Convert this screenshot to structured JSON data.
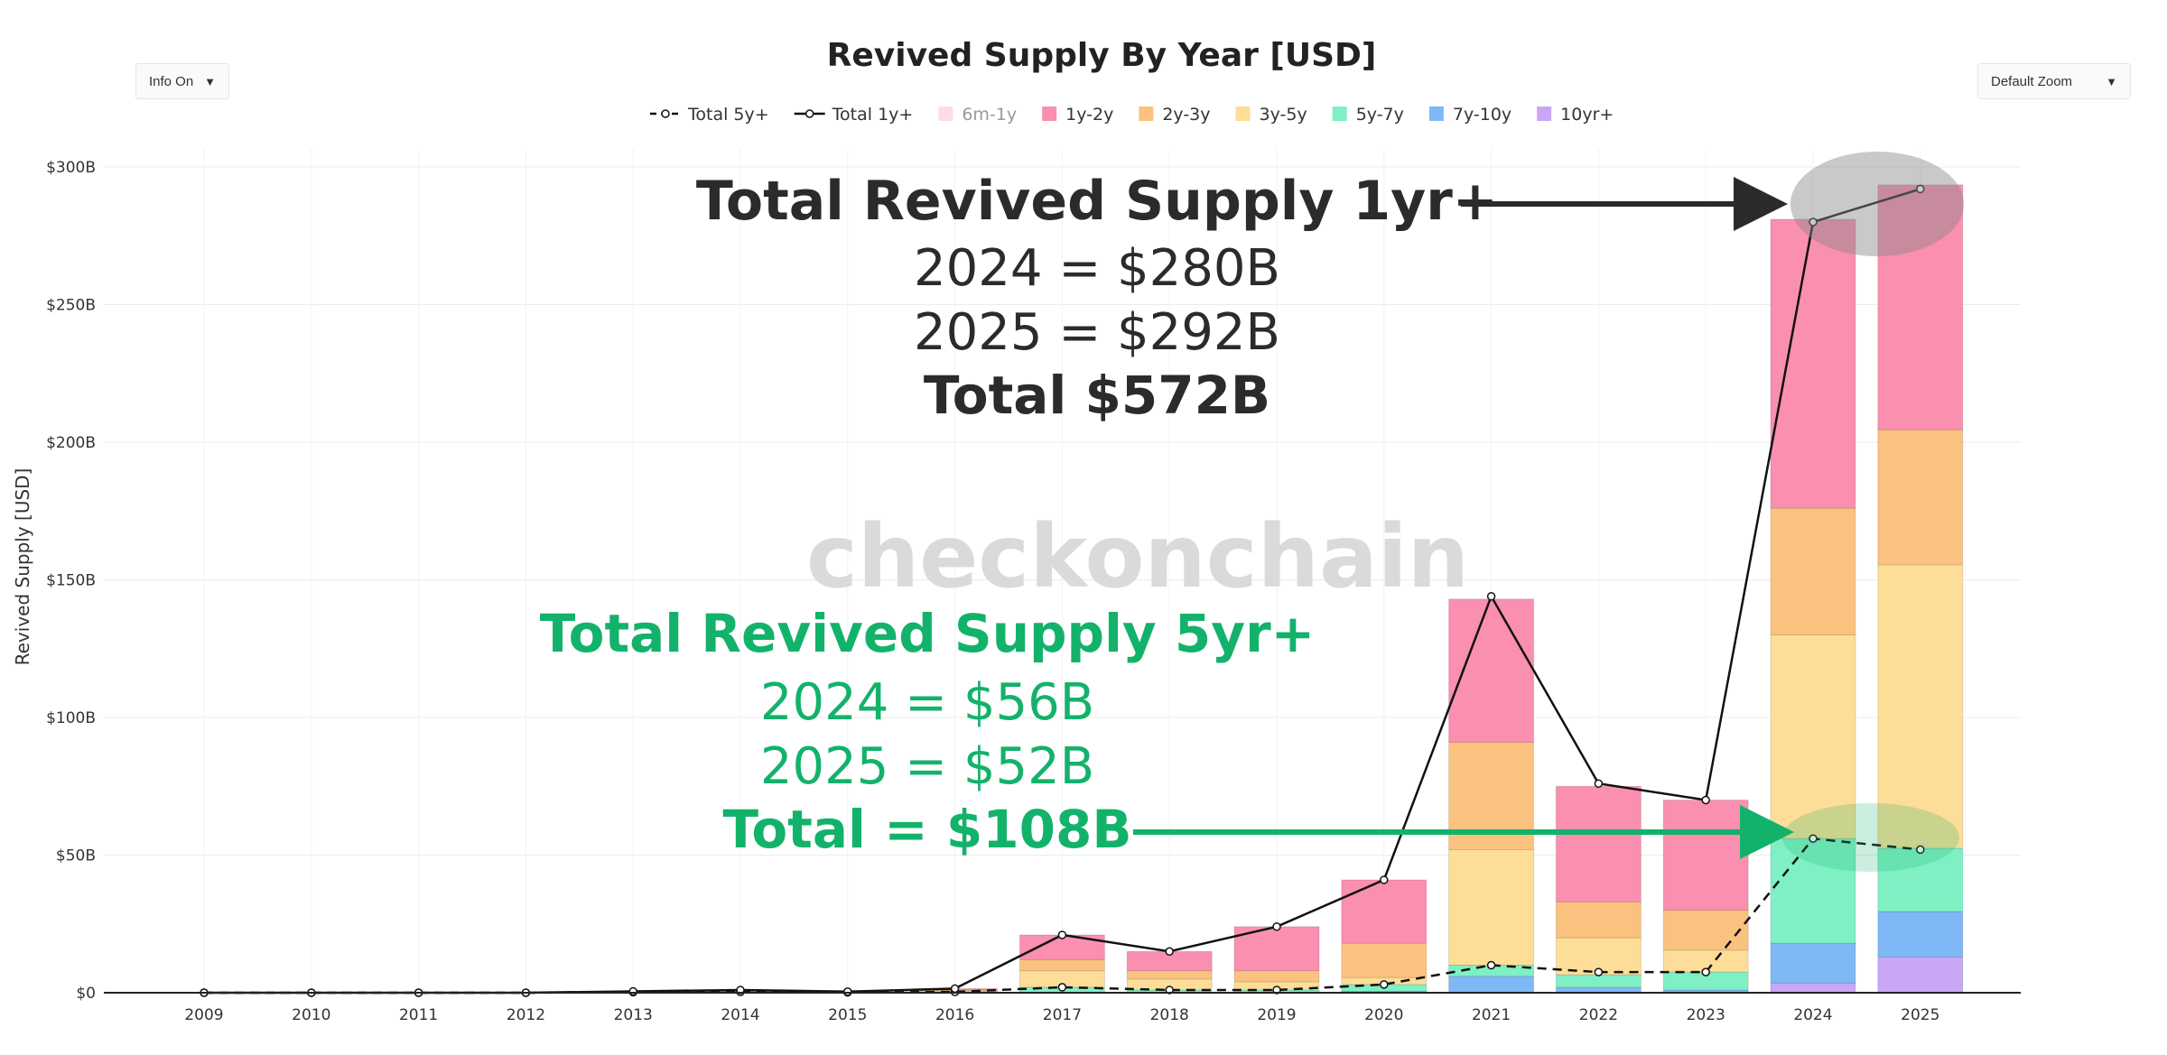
{
  "controls": {
    "info_label": "Info On",
    "info_caret": "▼",
    "zoom_label": "Default Zoom",
    "zoom_caret": "▼"
  },
  "watermark": "checkonchain",
  "colors": {
    "6m-1y": "#fbc4d8",
    "1y-2y": "#fb8fb0",
    "2y-3y": "#fbc27f",
    "3y-5y": "#fddd98",
    "5y-7y": "#7ff0c4",
    "7y-10y": "#7fb8f7",
    "10yr+": "#c8a7f5",
    "line": "#111111",
    "green_annotation": "#13b26b",
    "dark_annotation": "#2b2b2b"
  },
  "chart_data": {
    "type": "bar",
    "stacked": true,
    "title": "Revived Supply By Year [USD]",
    "xlabel": "",
    "ylabel": "Revived Supply [USD]",
    "ylim": [
      0,
      300
    ],
    "y_unit": "B USD",
    "y_ticks": [
      0,
      50,
      100,
      150,
      200,
      250,
      300
    ],
    "y_tick_labels": [
      "$0",
      "$50B",
      "$100B",
      "$150B",
      "$200B",
      "$250B",
      "$300B"
    ],
    "categories": [
      "2009",
      "2010",
      "2011",
      "2012",
      "2013",
      "2014",
      "2015",
      "2016",
      "2017",
      "2018",
      "2019",
      "2020",
      "2021",
      "2022",
      "2023",
      "2024",
      "2025"
    ],
    "series": [
      {
        "name": "10yr+",
        "values": [
          0,
          0,
          0,
          0,
          0,
          0,
          0,
          0,
          0,
          0,
          0,
          0,
          0,
          0,
          0,
          3.5,
          13
        ]
      },
      {
        "name": "7y-10y",
        "values": [
          0,
          0,
          0,
          0,
          0,
          0,
          0,
          0,
          0,
          0,
          0,
          0.5,
          6,
          2,
          1,
          14.5,
          16.5
        ]
      },
      {
        "name": "5y-7y",
        "values": [
          0,
          0,
          0,
          0,
          0.2,
          0.3,
          0.1,
          0.3,
          2,
          1,
          1,
          2.5,
          4,
          4.5,
          6.5,
          38,
          23
        ]
      },
      {
        "name": "3y-5y",
        "values": [
          0,
          0,
          0,
          0,
          0,
          0.2,
          0.1,
          0.4,
          6,
          4,
          3,
          2.5,
          42,
          13.5,
          8,
          74,
          103
        ]
      },
      {
        "name": "2y-3y",
        "values": [
          0,
          0,
          0,
          0,
          0.1,
          0.2,
          0.1,
          0.3,
          4,
          3,
          4,
          12.5,
          39,
          13,
          14.5,
          46,
          49
        ]
      },
      {
        "name": "1y-2y",
        "values": [
          0,
          0,
          0,
          0,
          0.2,
          0.3,
          0.1,
          0.5,
          9,
          7,
          16,
          23,
          52,
          42,
          40,
          105,
          89
        ]
      },
      {
        "name": "6m-1y",
        "values": [
          0,
          0,
          0,
          0,
          0,
          0,
          0,
          0,
          0,
          0,
          0,
          0,
          0,
          0,
          0,
          0,
          0
        ],
        "hidden": true
      }
    ],
    "lines": [
      {
        "name": "Total 5y+",
        "style": "dashed",
        "values": [
          0,
          0,
          0,
          0,
          0.2,
          0.3,
          0.1,
          0.3,
          2,
          1,
          1,
          3,
          10,
          7.5,
          7.5,
          56,
          52
        ]
      },
      {
        "name": "Total 1y+",
        "style": "solid",
        "values": [
          0,
          0,
          0,
          0,
          0.5,
          1,
          0.4,
          1.5,
          21,
          15,
          24,
          41,
          144,
          76,
          70,
          280,
          292
        ]
      }
    ],
    "legend": {
      "placement": "top-center",
      "entries": [
        {
          "label": "Total 5y+",
          "kind": "dashed-line"
        },
        {
          "label": "Total 1y+",
          "kind": "solid-line"
        },
        {
          "label": "6m-1y",
          "kind": "box",
          "dimmed": true
        },
        {
          "label": "1y-2y",
          "kind": "box"
        },
        {
          "label": "2y-3y",
          "kind": "box"
        },
        {
          "label": "3y-5y",
          "kind": "box"
        },
        {
          "label": "5y-7y",
          "kind": "box"
        },
        {
          "label": "7y-10y",
          "kind": "box"
        },
        {
          "label": "10yr+",
          "kind": "box"
        }
      ]
    },
    "grid": true,
    "annotations": {
      "supply_1yr": {
        "heading": "Total Revived Supply 1yr+",
        "line_2024": "2024 = $280B",
        "line_2025": "2025 = $292B",
        "total": "Total $572B"
      },
      "supply_5yr": {
        "heading": "Total Revived Supply 5yr+",
        "line_2024": "2024 = $56B",
        "line_2025": "2025 = $52B",
        "total": "Total = $108B"
      }
    }
  }
}
